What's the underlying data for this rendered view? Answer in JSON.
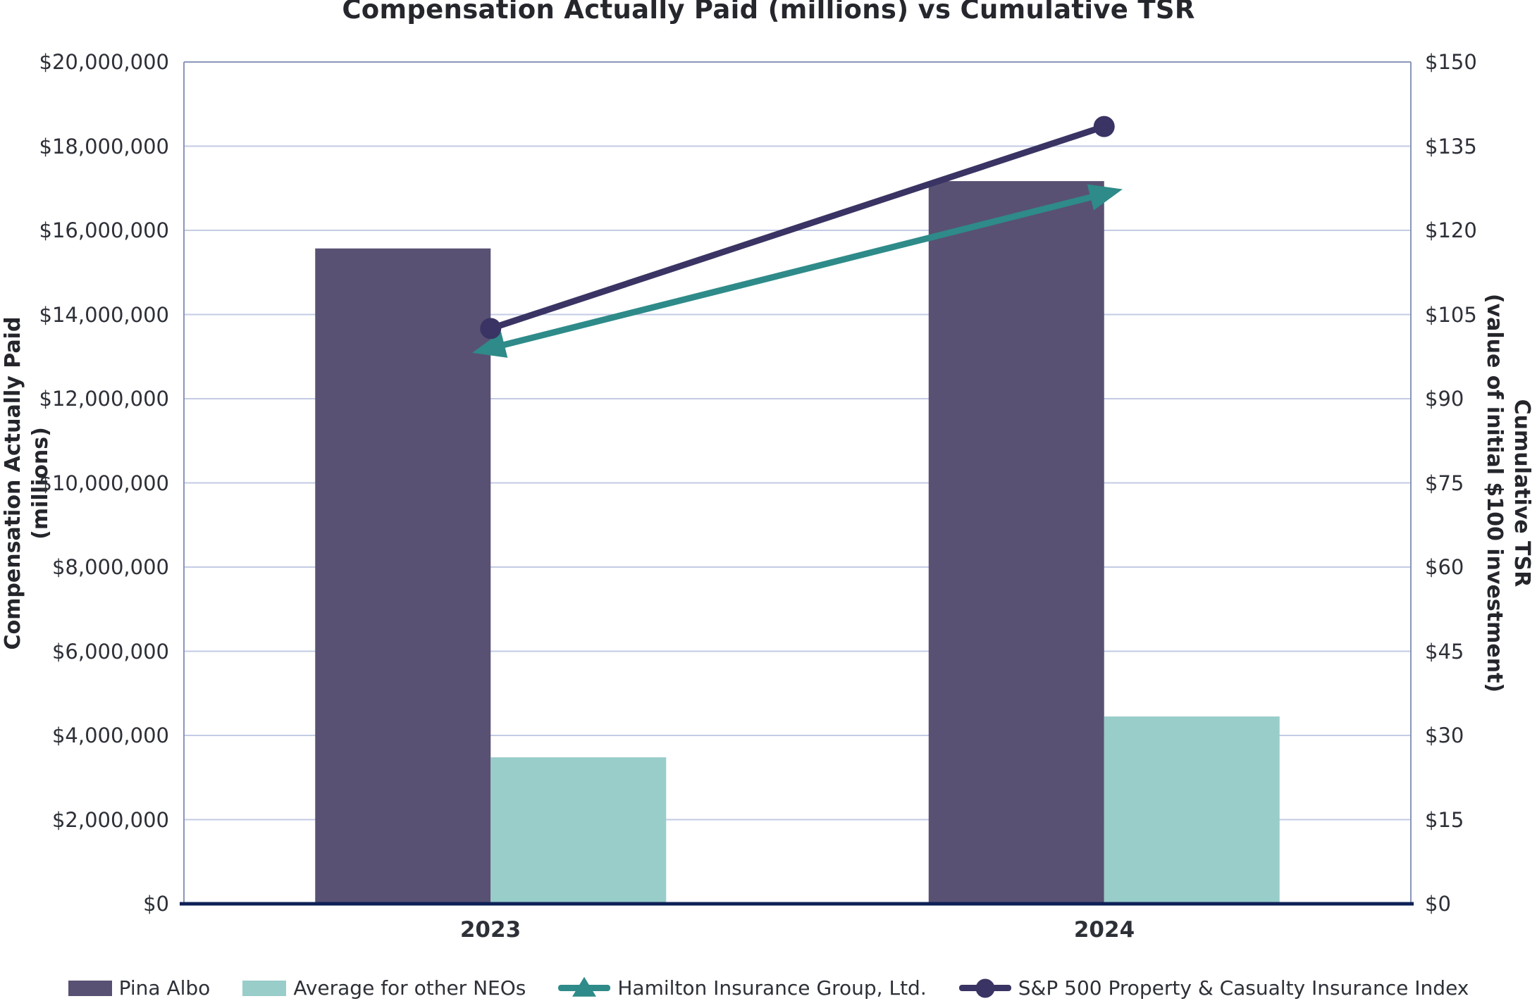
{
  "chart_data": {
    "type": "combo-bar-line",
    "title": "Compensation Actually Paid (millions) vs Cumulative TSR",
    "categories": [
      "2023",
      "2024"
    ],
    "series": [
      {
        "name": "Pina Albo",
        "type": "bar",
        "axis": "left",
        "color": "#585173",
        "values": [
          15570000,
          17170000
        ]
      },
      {
        "name": "Average for other NEOs",
        "type": "bar",
        "axis": "left",
        "color": "#98cdca",
        "values": [
          3480000,
          4450000
        ]
      },
      {
        "name": "Hamilton Insurance Group, Ltd.",
        "type": "line",
        "marker": "triangle",
        "axis": "right",
        "color": "#2e8b89",
        "values": [
          99,
          126.5
        ]
      },
      {
        "name": "S&P 500 Property & Casualty Insurance Index",
        "type": "line",
        "marker": "circle",
        "axis": "right",
        "color": "#393463",
        "values": [
          102.5,
          138.5
        ]
      }
    ],
    "axes": {
      "left": {
        "label_line1": "Compensation Actually Paid",
        "label_line2": "(millions)",
        "min": 0,
        "max": 20000000,
        "step": 2000000,
        "ticks": [
          "$20,000,000",
          "$18,000,000",
          "$16,000,000",
          "$14,000,000",
          "$12,000,000",
          "$10,000,000",
          "$8,000,000",
          "$6,000,000",
          "$4,000,000",
          "$2,000,000",
          "$0"
        ]
      },
      "right": {
        "label_line1": "Cumulative TSR",
        "label_line2": "(value of initial $100 investment)",
        "min": 0,
        "max": 150,
        "step": 15,
        "ticks": [
          "$150",
          "$135",
          "$120",
          "$105",
          "$90",
          "$75",
          "$60",
          "$45",
          "$30",
          "$15",
          "$0"
        ]
      }
    },
    "grid": true,
    "legend_position": "bottom",
    "style": {
      "grid_color": "#c3cbe4",
      "border_color": "#8a97ba",
      "x_axis_line_color": "#0e2157",
      "text_color": "#2d3037",
      "title_color": "#25272d"
    }
  }
}
